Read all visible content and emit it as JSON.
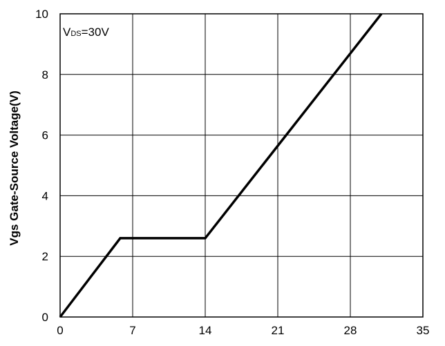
{
  "chart_data": {
    "type": "line",
    "title": "",
    "xlabel": "",
    "ylabel": "Vgs Gate-Source Voltage(V)",
    "xlim": [
      0,
      35
    ],
    "ylim": [
      0,
      10
    ],
    "xticks": [
      "0",
      "7",
      "14",
      "21",
      "28",
      "35"
    ],
    "yticks": [
      "0",
      "2",
      "4",
      "6",
      "8",
      "10"
    ],
    "grid": true,
    "legend": "none",
    "annotation": {
      "main": "V",
      "sub": "DS",
      "rest": "=30V"
    },
    "series": [
      {
        "color": "#000000",
        "x": [
          0,
          5.8,
          14,
          31
        ],
        "y": [
          0,
          2.6,
          2.6,
          10
        ]
      }
    ]
  }
}
